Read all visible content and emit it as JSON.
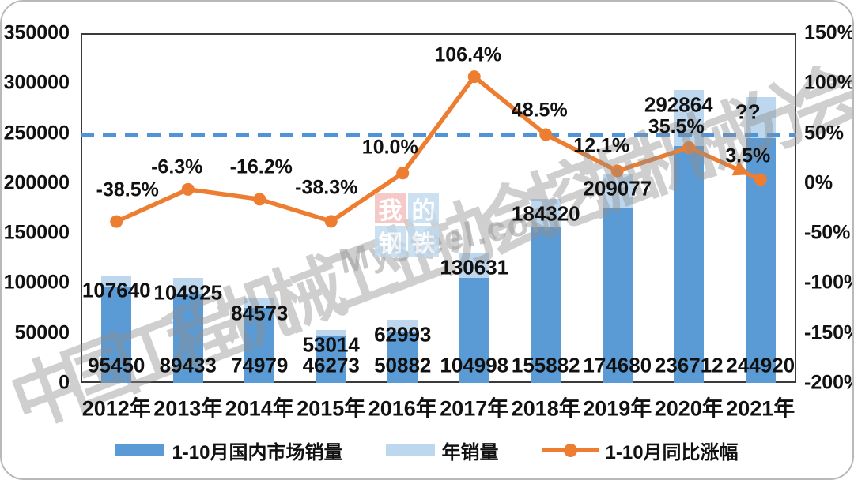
{
  "colors": {
    "bar_dark": "#5b9bd5",
    "bar_light": "#bdd7ee",
    "line": "#ed7d31",
    "reference_dash": "#4f94d8",
    "label_text": "#111111"
  },
  "watermarks": {
    "association_text": "中国工程机械工业协会挖掘机械分会",
    "mysteel_domain": "Mysteel.com",
    "logo_tiles": [
      {
        "char": "我",
        "bg": "red"
      },
      {
        "char": "的",
        "bg": "blue"
      },
      {
        "char": "钢",
        "bg": "blue"
      },
      {
        "char": "铁",
        "bg": "blue"
      }
    ]
  },
  "chart_data": {
    "type": "bar+line combo",
    "categories": [
      "2012年",
      "2013年",
      "2014年",
      "2015年",
      "2016年",
      "2017年",
      "2018年",
      "2019年",
      "2020年",
      "2021年"
    ],
    "series": [
      {
        "name": "1-10月国内市场销量",
        "type": "bar",
        "color": "#5b9bd5",
        "values": [
          95450,
          89433,
          74979,
          46273,
          50882,
          104998,
          155882,
          174680,
          236712,
          244920
        ],
        "display_labels": [
          "95450",
          "89433",
          "74979",
          "46273",
          "50882",
          "104998",
          "155882",
          "174680",
          "236712",
          "244920"
        ]
      },
      {
        "name": "年销量",
        "type": "bar",
        "color": "#bdd7ee",
        "values": [
          107640,
          104925,
          84573,
          53014,
          62993,
          130631,
          184320,
          209077,
          292864,
          286000
        ],
        "display_labels": [
          "107640",
          "104925",
          "84573",
          "53014",
          "62993",
          "130631",
          "184320",
          "209077",
          "292864",
          "??"
        ]
      },
      {
        "name": "1-10月同比涨幅",
        "type": "line",
        "color": "#ed7d31",
        "axis": "right",
        "values": [
          -38.5,
          -6.3,
          -16.2,
          -38.3,
          10.0,
          106.4,
          48.5,
          12.1,
          35.5,
          3.5
        ],
        "display_labels": [
          "-38.5%",
          "-6.3%",
          "-16.2%",
          "-38.3%",
          "10.0%",
          "106.4%",
          "48.5%",
          "12.1%",
          "35.5%",
          "3.5%"
        ]
      }
    ],
    "left_axis": {
      "min": 0,
      "max": 350000,
      "step": 50000,
      "ticks": [
        "0",
        "50000",
        "100000",
        "150000",
        "200000",
        "250000",
        "300000",
        "350000"
      ]
    },
    "right_axis": {
      "min": -200,
      "max": 150,
      "step": 50,
      "ticks": [
        "-200%",
        "-150%",
        "-100%",
        "-50%",
        "0%",
        "50%",
        "100%",
        "150%"
      ]
    },
    "reference_line": {
      "style": "dashed",
      "color": "#4f94d8",
      "approx_right_axis_value_pct": 48
    },
    "grid": "off",
    "legend_position": "bottom"
  },
  "legend": [
    {
      "label": "1-10月国内市场销量",
      "swatch": "bar-dark"
    },
    {
      "label": "年销量",
      "swatch": "bar-light"
    },
    {
      "label": "1-10月同比涨幅",
      "swatch": "line"
    }
  ]
}
